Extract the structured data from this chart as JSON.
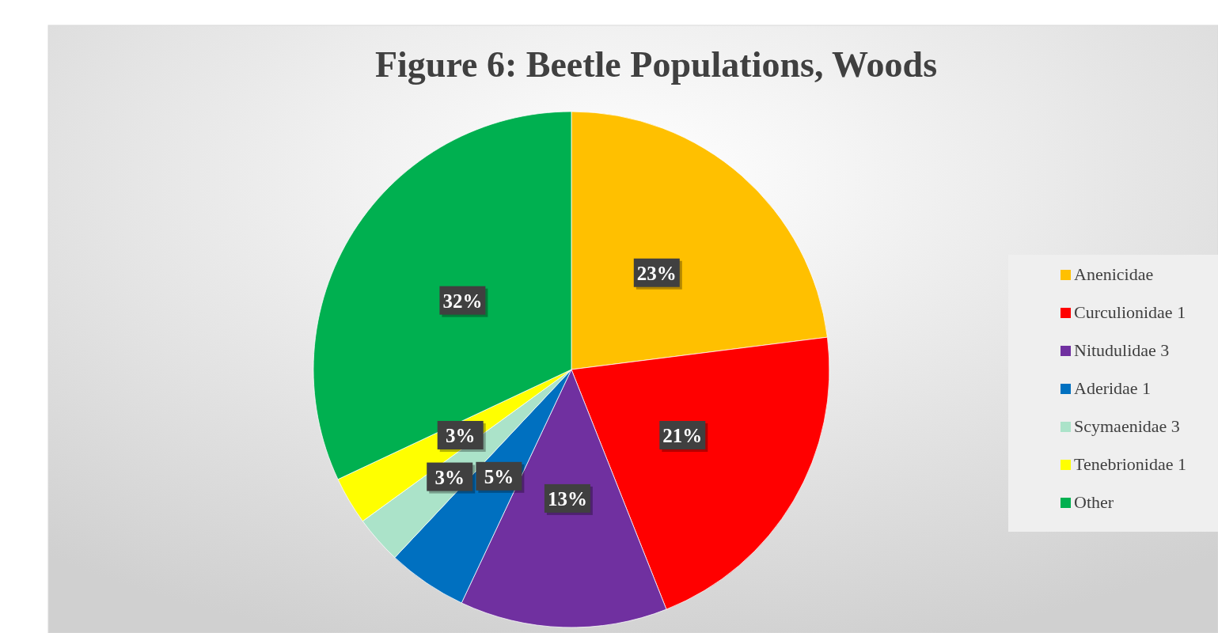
{
  "chart_data": {
    "type": "pie",
    "title": "Figure 6: Beetle Populations, Woods",
    "categories": [
      "Anenicidae",
      "Curculionidae 1",
      "Nitudulidae 3",
      "Aderidae 1",
      "Scymaenidae 3",
      "Tenebrionidae 1",
      "Other"
    ],
    "values": [
      23,
      21,
      13,
      5,
      3,
      3,
      32
    ],
    "colors": [
      "#ffc000",
      "#ff0000",
      "#7030a0",
      "#0070c0",
      "#abe3c9",
      "#ffff00",
      "#00b050"
    ],
    "value_labels": [
      "23%",
      "21%",
      "13%",
      "5%",
      "3%",
      "3%",
      "32%"
    ],
    "legend": "right"
  }
}
